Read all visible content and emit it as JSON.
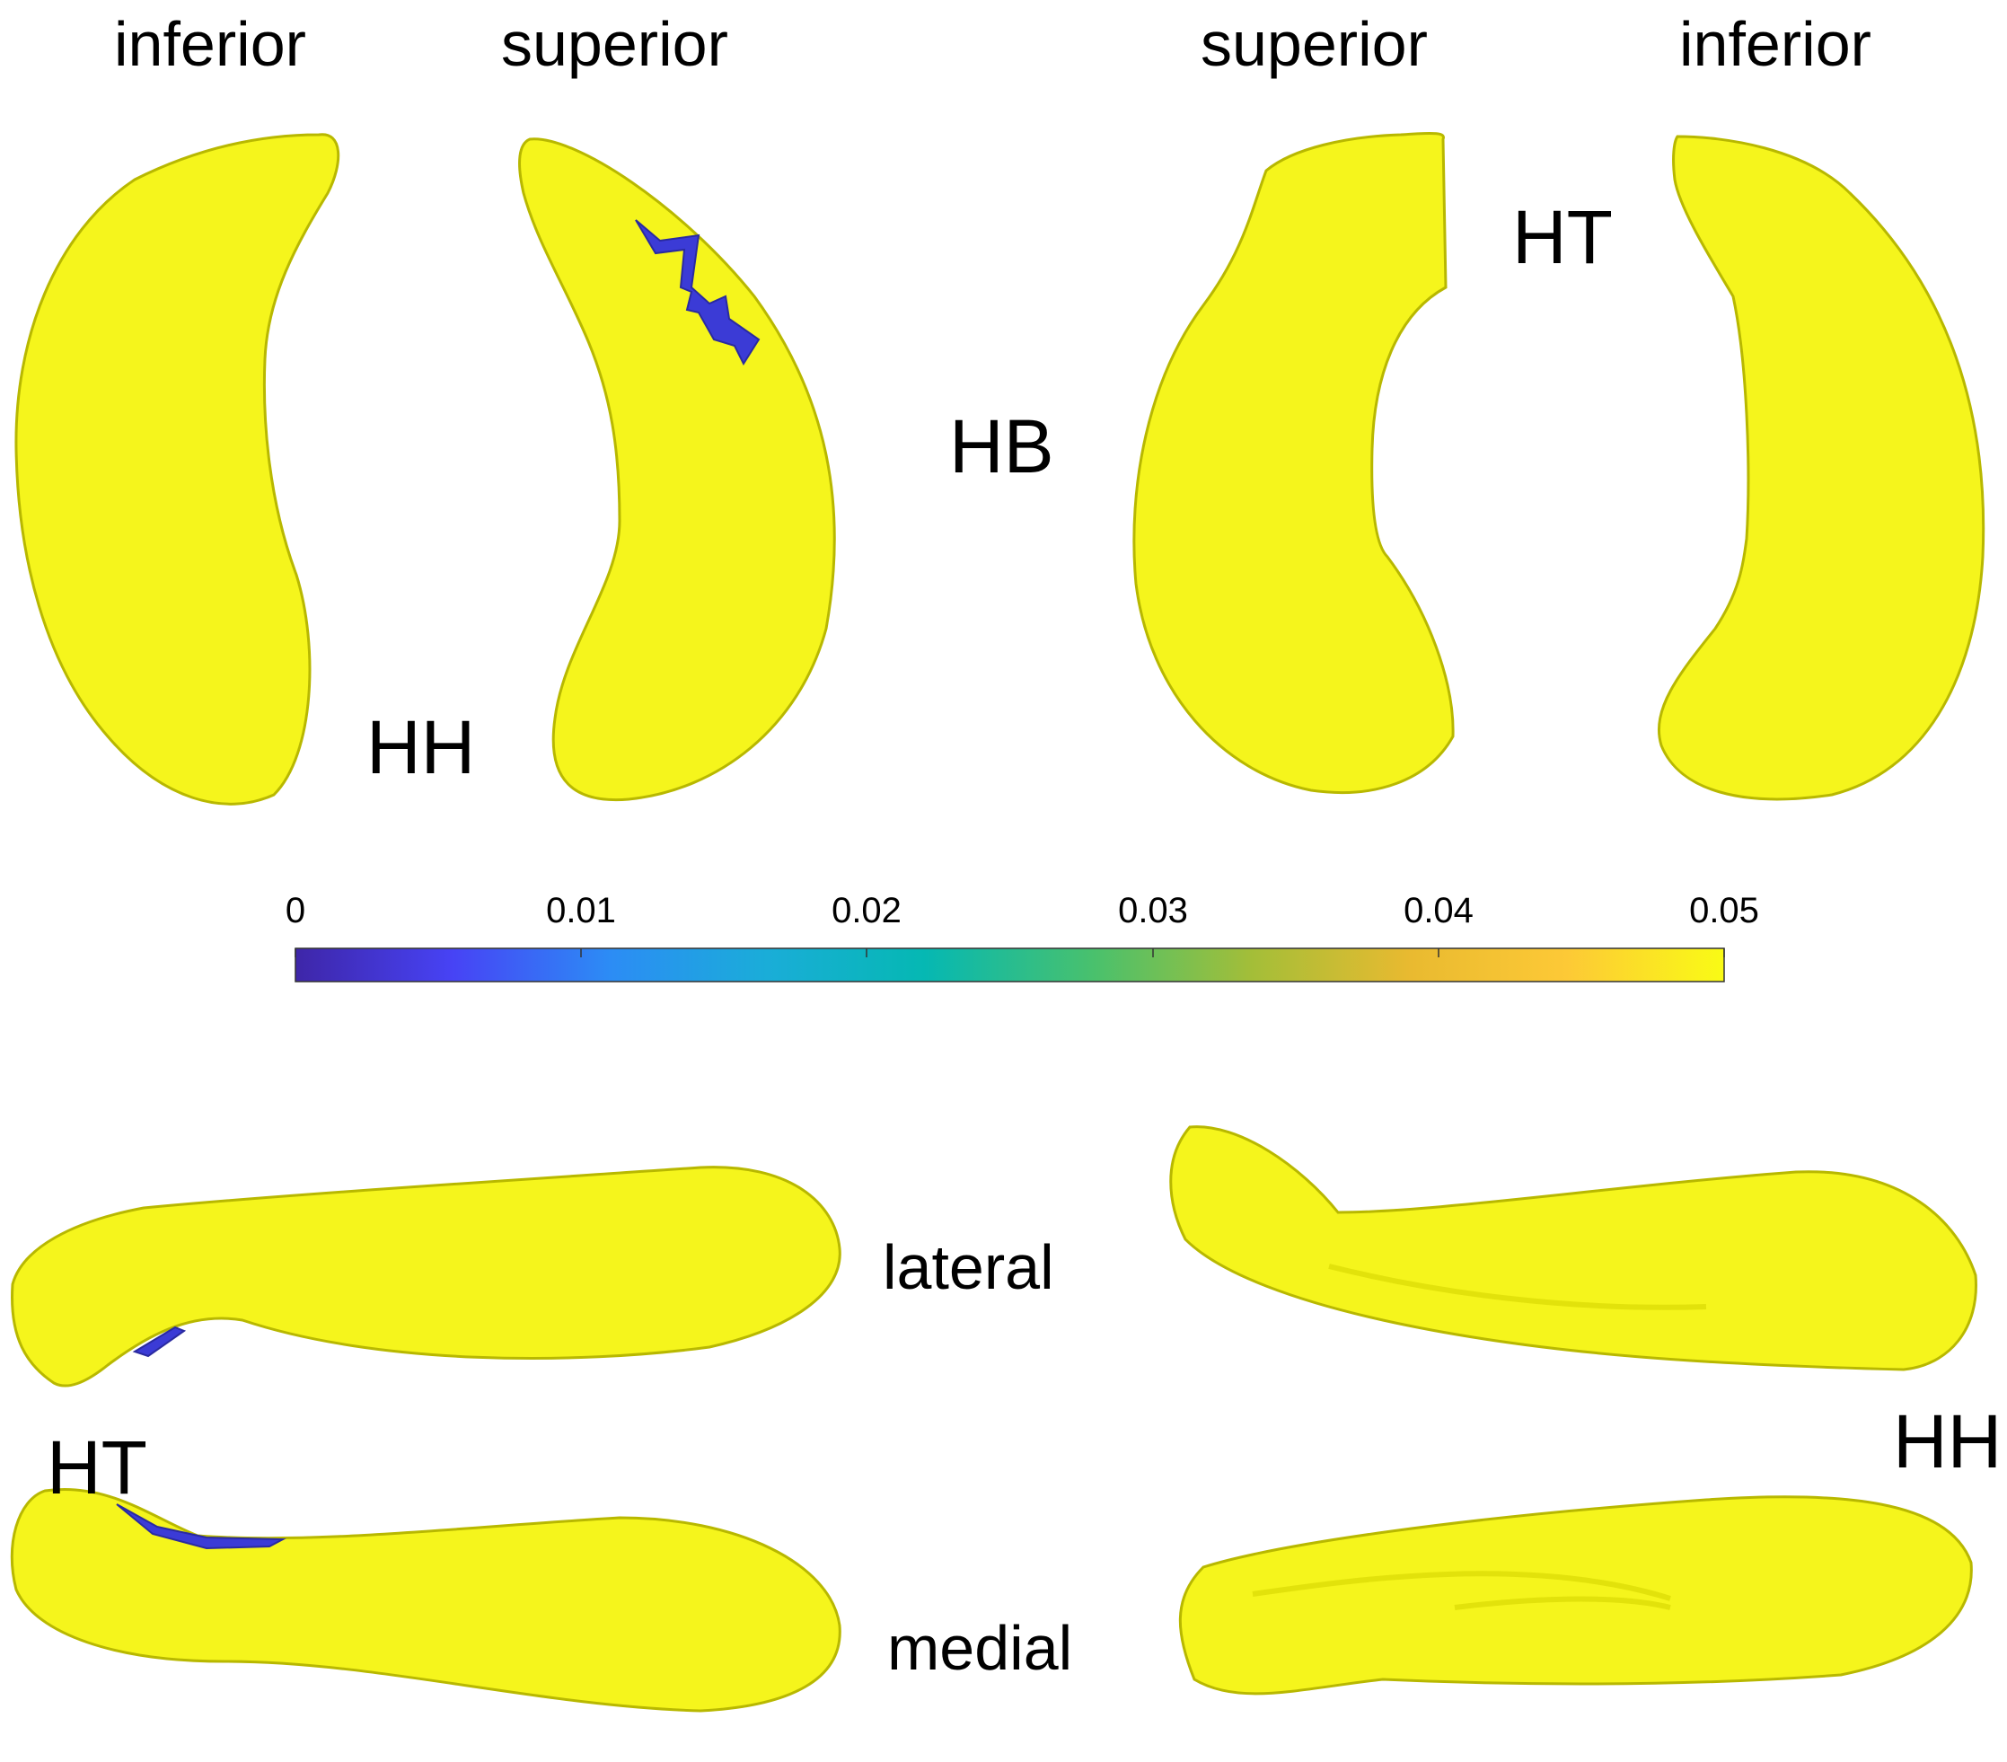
{
  "views": {
    "top_left_inferior": "inferior",
    "top_left_superior": "superior",
    "top_right_superior": "superior",
    "top_right_inferior": "inferior",
    "lateral": "lateral",
    "medial": "medial"
  },
  "regions": {
    "hb": "HB",
    "hh_top": "HH",
    "ht_top": "HT",
    "ht_bottom": "HT",
    "hh_bottom": "HH"
  },
  "colorbar": {
    "ticks": [
      "0",
      "0.01",
      "0.02",
      "0.03",
      "0.04",
      "0.05"
    ],
    "min": 0,
    "max": 0.05,
    "colormap": "parula",
    "stops": [
      "#3e26a8",
      "#4743f5",
      "#2c8cf5",
      "#1aadd8",
      "#05b8b3",
      "#4ac16c",
      "#a4be38",
      "#e9ba30",
      "#fdc936",
      "#f9fb15"
    ]
  },
  "colors": {
    "surface": "#f5f51c",
    "surface_edge": "#c8c800",
    "significant": "#3b3bd6"
  }
}
